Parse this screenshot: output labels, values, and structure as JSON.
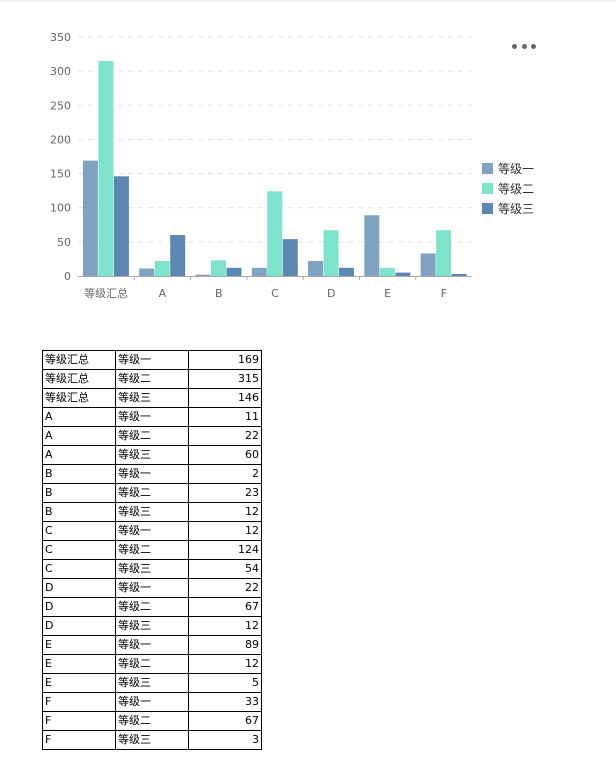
{
  "chart_data": {
    "type": "bar",
    "categories": [
      "等级汇总",
      "A",
      "B",
      "C",
      "D",
      "E",
      "F"
    ],
    "series": [
      {
        "name": "等级一",
        "color": "#7fa3c0",
        "values": [
          169,
          11,
          2,
          12,
          22,
          89,
          33
        ]
      },
      {
        "name": "等级二",
        "color": "#7ee3cb",
        "values": [
          315,
          22,
          23,
          124,
          67,
          12,
          67
        ]
      },
      {
        "name": "等级三",
        "color": "#5b87b2",
        "values": [
          146,
          60,
          12,
          54,
          12,
          5,
          3
        ]
      }
    ],
    "ylim": [
      0,
      350
    ],
    "yticks": [
      0,
      50,
      100,
      150,
      200,
      250,
      300,
      350
    ],
    "grid": true,
    "legend_position": "right"
  },
  "toolbar": {
    "more_icon": "more-horizontal-icon"
  },
  "table": {
    "rows": [
      [
        "等级汇总",
        "等级一",
        "169"
      ],
      [
        "等级汇总",
        "等级二",
        "315"
      ],
      [
        "等级汇总",
        "等级三",
        "146"
      ],
      [
        "A",
        "等级一",
        "11"
      ],
      [
        "A",
        "等级二",
        "22"
      ],
      [
        "A",
        "等级三",
        "60"
      ],
      [
        "B",
        "等级一",
        "2"
      ],
      [
        "B",
        "等级二",
        "23"
      ],
      [
        "B",
        "等级三",
        "12"
      ],
      [
        "C",
        "等级一",
        "12"
      ],
      [
        "C",
        "等级二",
        "124"
      ],
      [
        "C",
        "等级三",
        "54"
      ],
      [
        "D",
        "等级一",
        "22"
      ],
      [
        "D",
        "等级二",
        "67"
      ],
      [
        "D",
        "等级三",
        "12"
      ],
      [
        "E",
        "等级一",
        "89"
      ],
      [
        "E",
        "等级二",
        "12"
      ],
      [
        "E",
        "等级三",
        "5"
      ],
      [
        "F",
        "等级一",
        "33"
      ],
      [
        "F",
        "等级二",
        "67"
      ],
      [
        "F",
        "等级三",
        "3"
      ]
    ]
  }
}
